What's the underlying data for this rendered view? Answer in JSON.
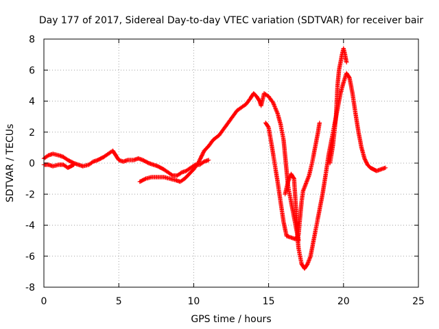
{
  "chart_data": {
    "type": "scatter",
    "title": "Day 177 of 2017, Sidereal Day-to-day VTEC variation (SDTVAR) for receiver bair",
    "xlabel": "GPS time / hours",
    "ylabel": "SDTVAR / TECUs",
    "xlim": [
      0,
      25
    ],
    "ylim": [
      -8,
      8
    ],
    "xticks": [
      "0",
      "5",
      "10",
      "15",
      "20",
      "25"
    ],
    "yticks": [
      "-8",
      "-6",
      "-4",
      "-2",
      "0",
      "2",
      "4",
      "6",
      "8"
    ],
    "grid": true,
    "marker": "plus",
    "color": "#ff0000",
    "series": [
      {
        "points": [
          [
            0.0,
            0.3
          ],
          [
            0.3,
            0.5
          ],
          [
            0.6,
            0.6
          ],
          [
            1.0,
            0.5
          ],
          [
            1.3,
            0.4
          ],
          [
            1.6,
            0.2
          ],
          [
            2.0,
            0.0
          ],
          [
            2.3,
            -0.1
          ],
          [
            2.6,
            -0.2
          ],
          [
            3.0,
            -0.1
          ],
          [
            3.3,
            0.1
          ],
          [
            3.6,
            0.2
          ],
          [
            4.0,
            0.4
          ],
          [
            4.3,
            0.6
          ],
          [
            4.6,
            0.8
          ],
          [
            4.8,
            0.5
          ],
          [
            5.0,
            0.2
          ],
          [
            5.3,
            0.1
          ],
          [
            5.6,
            0.2
          ],
          [
            6.0,
            0.2
          ],
          [
            6.3,
            0.3
          ],
          [
            6.6,
            0.2
          ],
          [
            7.0,
            0.0
          ],
          [
            7.3,
            -0.1
          ],
          [
            7.6,
            -0.2
          ],
          [
            8.0,
            -0.4
          ],
          [
            8.3,
            -0.6
          ],
          [
            8.6,
            -0.8
          ],
          [
            8.9,
            -0.8
          ],
          [
            9.2,
            -0.6
          ],
          [
            9.5,
            -0.5
          ],
          [
            9.8,
            -0.3
          ],
          [
            10.1,
            -0.1
          ],
          [
            10.4,
            -0.1
          ],
          [
            10.7,
            0.1
          ],
          [
            11.0,
            0.2
          ]
        ]
      },
      {
        "points": [
          [
            0.0,
            -0.1
          ],
          [
            0.3,
            -0.1
          ],
          [
            0.6,
            -0.2
          ],
          [
            1.0,
            -0.1
          ],
          [
            1.3,
            -0.1
          ],
          [
            1.6,
            -0.3
          ],
          [
            1.8,
            -0.2
          ],
          [
            2.0,
            -0.1
          ]
        ]
      },
      {
        "points": [
          [
            6.4,
            -1.2
          ],
          [
            6.8,
            -1.0
          ],
          [
            7.2,
            -0.9
          ],
          [
            7.6,
            -0.9
          ],
          [
            8.0,
            -0.9
          ],
          [
            8.4,
            -1.0
          ],
          [
            8.8,
            -1.1
          ],
          [
            9.1,
            -1.2
          ],
          [
            9.4,
            -1.0
          ],
          [
            9.7,
            -0.7
          ],
          [
            10.0,
            -0.4
          ],
          [
            10.3,
            0.0
          ],
          [
            10.5,
            0.4
          ],
          [
            10.7,
            0.8
          ],
          [
            11.0,
            1.1
          ],
          [
            11.3,
            1.5
          ],
          [
            11.7,
            1.8
          ],
          [
            12.0,
            2.2
          ],
          [
            12.3,
            2.6
          ],
          [
            12.6,
            3.0
          ],
          [
            12.9,
            3.4
          ],
          [
            13.2,
            3.6
          ],
          [
            13.5,
            3.8
          ],
          [
            13.8,
            4.2
          ],
          [
            14.0,
            4.5
          ],
          [
            14.2,
            4.3
          ],
          [
            14.4,
            4.0
          ],
          [
            14.5,
            3.7
          ],
          [
            14.7,
            4.5
          ],
          [
            15.0,
            4.3
          ],
          [
            15.3,
            3.9
          ],
          [
            15.6,
            3.2
          ],
          [
            15.8,
            2.5
          ],
          [
            16.0,
            1.5
          ],
          [
            16.1,
            0.5
          ],
          [
            16.2,
            -0.5
          ],
          [
            16.3,
            -1.5
          ],
          [
            16.5,
            -2.5
          ],
          [
            16.7,
            -3.5
          ],
          [
            16.9,
            -4.5
          ],
          [
            17.0,
            -5.5
          ],
          [
            17.2,
            -6.5
          ],
          [
            17.4,
            -6.8
          ],
          [
            17.6,
            -6.5
          ],
          [
            17.8,
            -6.0
          ],
          [
            18.0,
            -5.0
          ],
          [
            18.2,
            -4.0
          ],
          [
            18.4,
            -3.0
          ],
          [
            18.6,
            -2.0
          ],
          [
            18.8,
            -0.8
          ],
          [
            19.0,
            0.5
          ],
          [
            19.2,
            1.5
          ],
          [
            19.4,
            2.5
          ],
          [
            19.6,
            3.5
          ],
          [
            19.8,
            4.5
          ],
          [
            20.0,
            5.2
          ],
          [
            20.2,
            5.8
          ],
          [
            20.4,
            5.5
          ],
          [
            20.6,
            4.5
          ],
          [
            20.8,
            3.2
          ],
          [
            21.0,
            2.0
          ],
          [
            21.2,
            1.0
          ],
          [
            21.4,
            0.3
          ],
          [
            21.6,
            -0.1
          ],
          [
            21.8,
            -0.3
          ],
          [
            22.0,
            -0.4
          ],
          [
            22.2,
            -0.5
          ],
          [
            22.5,
            -0.4
          ],
          [
            22.8,
            -0.3
          ]
        ]
      },
      {
        "points": [
          [
            14.8,
            2.6
          ],
          [
            15.0,
            2.3
          ],
          [
            15.2,
            1.2
          ],
          [
            15.4,
            0.0
          ],
          [
            15.6,
            -1.2
          ],
          [
            15.8,
            -2.5
          ],
          [
            16.0,
            -3.8
          ],
          [
            16.2,
            -4.7
          ],
          [
            16.5,
            -4.8
          ],
          [
            16.8,
            -4.9
          ],
          [
            17.0,
            -4.6
          ],
          [
            17.1,
            -3.5
          ],
          [
            17.2,
            -2.5
          ],
          [
            17.3,
            -1.8
          ],
          [
            17.5,
            -1.3
          ],
          [
            17.7,
            -0.8
          ],
          [
            17.9,
            0.0
          ],
          [
            18.1,
            1.0
          ],
          [
            18.3,
            2.0
          ],
          [
            18.4,
            2.6
          ]
        ]
      },
      {
        "points": [
          [
            16.1,
            -2.0
          ],
          [
            16.3,
            -1.2
          ],
          [
            16.5,
            -0.7
          ],
          [
            16.7,
            -1.0
          ],
          [
            16.8,
            -2.5
          ],
          [
            16.9,
            -4.0
          ],
          [
            17.0,
            -5.0
          ]
        ]
      },
      {
        "points": [
          [
            19.1,
            0.0
          ],
          [
            19.3,
            1.2
          ],
          [
            19.5,
            3.0
          ],
          [
            19.6,
            5.0
          ],
          [
            19.7,
            6.0
          ],
          [
            19.9,
            7.0
          ],
          [
            20.0,
            7.4
          ],
          [
            20.1,
            7.0
          ],
          [
            20.2,
            6.5
          ]
        ]
      }
    ]
  }
}
